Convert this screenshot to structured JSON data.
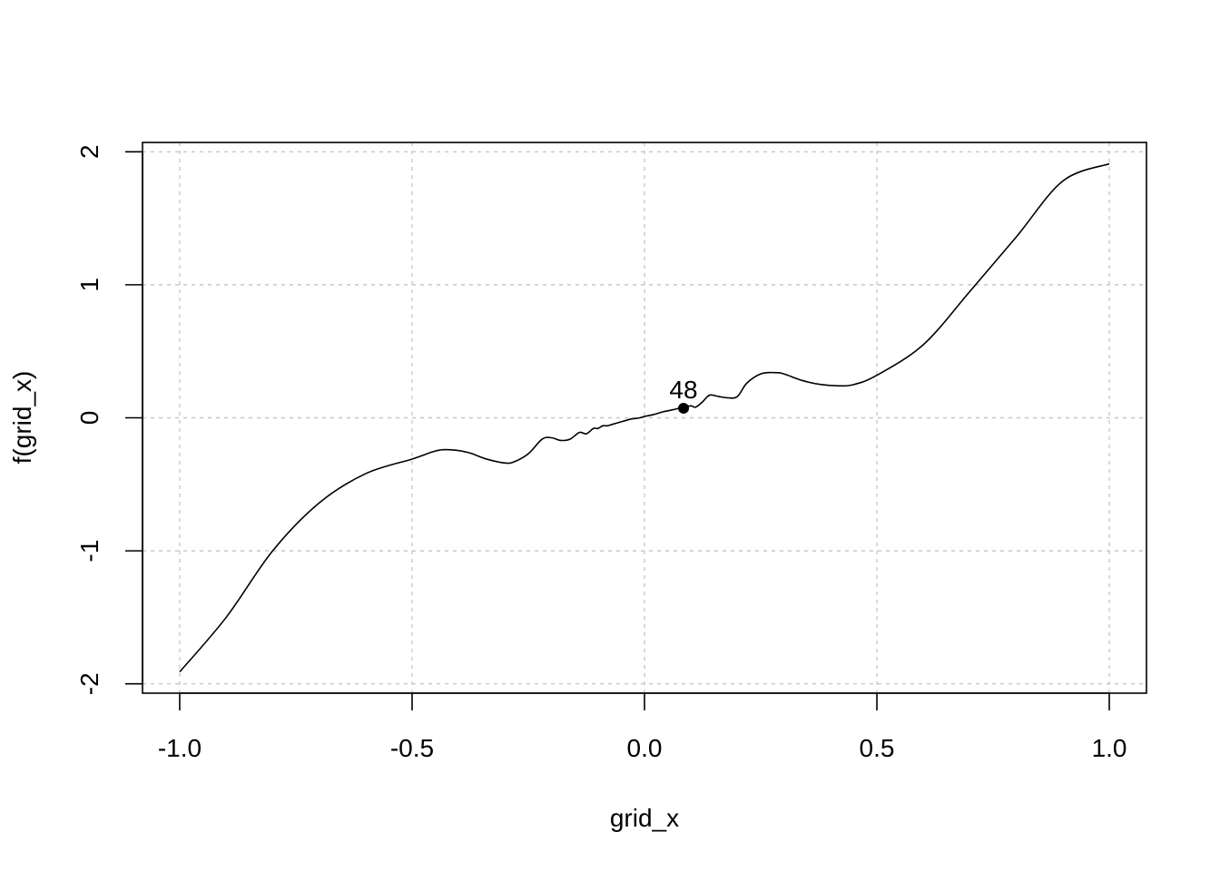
{
  "chart_data": {
    "type": "line",
    "title": "",
    "xlabel": "grid_x",
    "ylabel": "f(grid_x)",
    "xlim": [
      -1.08,
      1.08
    ],
    "ylim": [
      -2.07,
      2.07
    ],
    "x_ticks": [
      -1.0,
      -0.5,
      0.0,
      0.5,
      1.0
    ],
    "x_tick_labels": [
      "-1.0",
      "-0.5",
      "0.0",
      "0.5",
      "1.0"
    ],
    "y_ticks": [
      -2,
      -1,
      0,
      1,
      2
    ],
    "y_tick_labels": [
      "-2",
      "-1",
      "0",
      "1",
      "2"
    ],
    "grid": true,
    "grid_style": "dotted",
    "line_color": "#000000",
    "grid_color": "#c8c8c8",
    "series": [
      {
        "x": [
          -1.0,
          -0.9,
          -0.8,
          -0.7,
          -0.6,
          -0.5,
          -0.45,
          -0.42,
          -0.38,
          -0.34,
          -0.3,
          -0.28,
          -0.25,
          -0.22,
          -0.2,
          -0.18,
          -0.16,
          -0.14,
          -0.125,
          -0.11,
          -0.1,
          -0.09,
          -0.08,
          -0.07,
          -0.06,
          -0.05,
          -0.04,
          -0.03,
          -0.02,
          -0.01,
          0.0,
          0.02,
          0.04,
          0.06,
          0.084,
          0.1,
          0.11,
          0.125,
          0.14,
          0.16,
          0.18,
          0.2,
          0.22,
          0.25,
          0.28,
          0.3,
          0.34,
          0.38,
          0.42,
          0.45,
          0.5,
          0.6,
          0.7,
          0.8,
          0.9,
          1.0
        ],
        "y": [
          -1.91,
          -1.5,
          -1.0,
          -0.64,
          -0.42,
          -0.31,
          -0.25,
          -0.24,
          -0.26,
          -0.31,
          -0.34,
          -0.33,
          -0.27,
          -0.16,
          -0.15,
          -0.17,
          -0.16,
          -0.11,
          -0.12,
          -0.08,
          -0.08,
          -0.06,
          -0.06,
          -0.05,
          -0.04,
          -0.03,
          -0.02,
          -0.01,
          -0.005,
          0.0,
          0.01,
          0.025,
          0.045,
          0.06,
          0.08,
          0.09,
          0.08,
          0.12,
          0.17,
          0.16,
          0.15,
          0.16,
          0.26,
          0.33,
          0.34,
          0.33,
          0.28,
          0.25,
          0.24,
          0.25,
          0.32,
          0.55,
          0.95,
          1.36,
          1.78,
          1.91
        ]
      }
    ],
    "highlight_point": {
      "x": 0.084,
      "y": 0.072,
      "label": "48"
    }
  }
}
